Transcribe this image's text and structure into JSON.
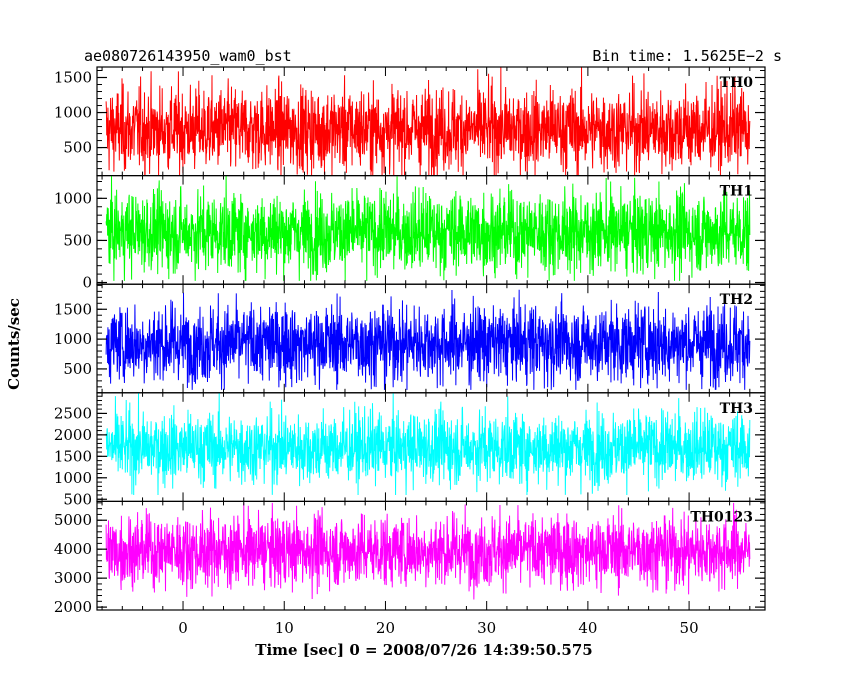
{
  "chart_data": {
    "type": "line",
    "title_left": "ae080726143950_wam0_bst",
    "title_right": "Bin time: 1.5625E−2 s",
    "xlabel": "Time [sec] 0 = 2008/07/26 14:39:50.575",
    "ylabel": "Counts/sec",
    "xlim": [
      -8.5,
      57.5
    ],
    "x_ticks": [
      0,
      10,
      20,
      30,
      40,
      50
    ],
    "data_range": [
      -7.6,
      56.0
    ],
    "bin_time": 0.015625,
    "grid": false,
    "panels": [
      {
        "name": "TH0",
        "color": "#ff0000",
        "ylim": [
          100,
          1650
        ],
        "y_ticks": [
          500,
          1000,
          1500
        ],
        "mean": 760,
        "sigma": 300,
        "min": 100,
        "max": 1650
      },
      {
        "name": "TH1",
        "color": "#00ff00",
        "ylim": [
          -20,
          1270
        ],
        "y_ticks": [
          0,
          500,
          1000
        ],
        "mean": 600,
        "sigma": 240,
        "min": 20,
        "max": 1270
      },
      {
        "name": "TH2",
        "color": "#0000ff",
        "ylim": [
          100,
          1920
        ],
        "y_ticks": [
          500,
          1000,
          1500
        ],
        "mean": 930,
        "sigma": 330,
        "min": 150,
        "max": 1920
      },
      {
        "name": "TH3",
        "color": "#00ffff",
        "ylim": [
          450,
          2980
        ],
        "y_ticks": [
          500,
          1000,
          1500,
          2000,
          2500
        ],
        "mean": 1700,
        "sigma": 420,
        "min": 600,
        "max": 2980
      },
      {
        "name": "TH0123",
        "color": "#ff00ff",
        "ylim": [
          1900,
          5650
        ],
        "y_ticks": [
          2000,
          3000,
          4000,
          5000
        ],
        "mean": 3950,
        "sigma": 620,
        "min": 2000,
        "max": 5600
      }
    ]
  }
}
